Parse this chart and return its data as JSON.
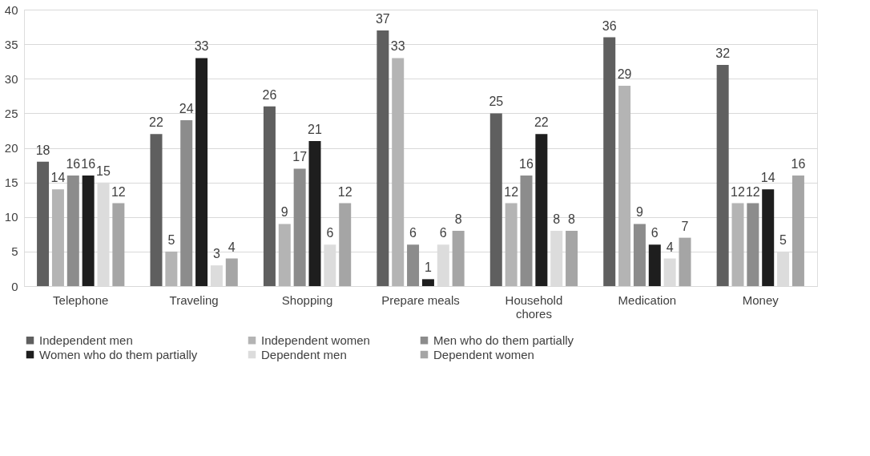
{
  "chart_data": {
    "type": "bar",
    "categories": [
      "Telephone",
      "Traveling",
      "Shopping",
      "Prepare meals",
      "Household chores",
      "Medication",
      "Money"
    ],
    "series": [
      {
        "name": "Independent men",
        "color": "#5f5f5f",
        "values": [
          18,
          22,
          26,
          37,
          25,
          36,
          32
        ]
      },
      {
        "name": "Independent women",
        "color": "#b4b4b4",
        "values": [
          14,
          5,
          9,
          33,
          12,
          29,
          12
        ]
      },
      {
        "name": "Men who do them partially",
        "color": "#8c8c8c",
        "values": [
          16,
          24,
          17,
          6,
          16,
          9,
          12
        ]
      },
      {
        "name": "Women who do them partially",
        "color": "#1e1e1e",
        "values": [
          16,
          33,
          21,
          1,
          22,
          6,
          14
        ]
      },
      {
        "name": "Dependent men",
        "color": "#dcdcdc",
        "values": [
          15,
          3,
          6,
          6,
          8,
          4,
          5
        ]
      },
      {
        "name": "Dependent women",
        "color": "#a5a5a5",
        "values": [
          12,
          4,
          12,
          8,
          8,
          7,
          16
        ]
      }
    ],
    "ylim": [
      0,
      40
    ],
    "yticks": [
      0,
      5,
      10,
      15,
      20,
      25,
      30,
      35,
      40
    ],
    "grid": "y",
    "legend": "bottom",
    "data_labels": true
  }
}
